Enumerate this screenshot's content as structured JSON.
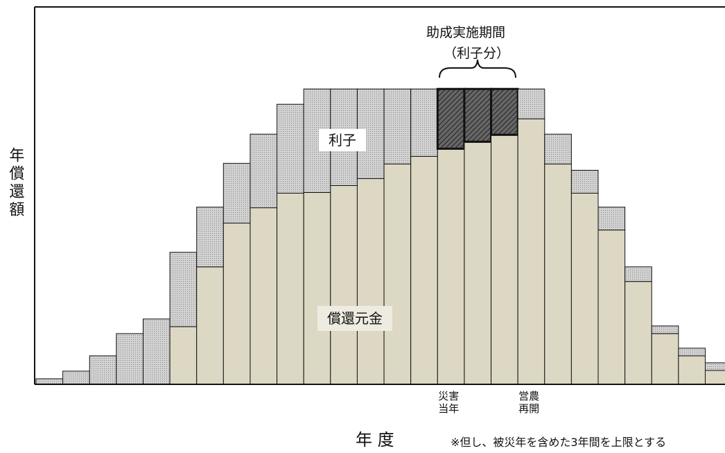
{
  "chart_data": {
    "type": "stacked_bar",
    "annotation": "助成実施期間",
    "annotation_sub": "（利子分）",
    "y_label": "年償還額",
    "x_label": "年 度",
    "note": "※但し、被災年を含めた3年間を上限とする",
    "categories": [
      null,
      null,
      null,
      null,
      null,
      null,
      null,
      null,
      null,
      null,
      null,
      null,
      null,
      null,
      null,
      "災害\n当年",
      null,
      null,
      "営農\n再開",
      null,
      null,
      null,
      null,
      null,
      null,
      null
    ],
    "series": [
      {
        "name": "償還元金",
        "color": "#ddd8c4",
        "values": [
          0,
          0,
          0,
          0,
          0,
          83,
          169,
          232,
          254,
          275,
          276,
          286,
          296,
          317,
          328,
          339,
          349,
          359,
          382,
          317,
          275,
          222,
          148,
          73,
          41,
          20
        ]
      },
      {
        "name": "利子",
        "color": "#d2d2d2",
        "values": [
          8,
          19,
          41,
          73,
          94,
          107,
          86,
          86,
          106,
          128,
          149,
          139,
          129,
          108,
          97,
          86,
          76,
          66,
          43,
          43,
          33,
          33,
          21,
          11,
          11,
          11
        ]
      }
    ],
    "hatched": [
      15,
      16,
      17
    ],
    "hatch_color": "#666666",
    "ylim": [
      0,
      543
    ]
  }
}
